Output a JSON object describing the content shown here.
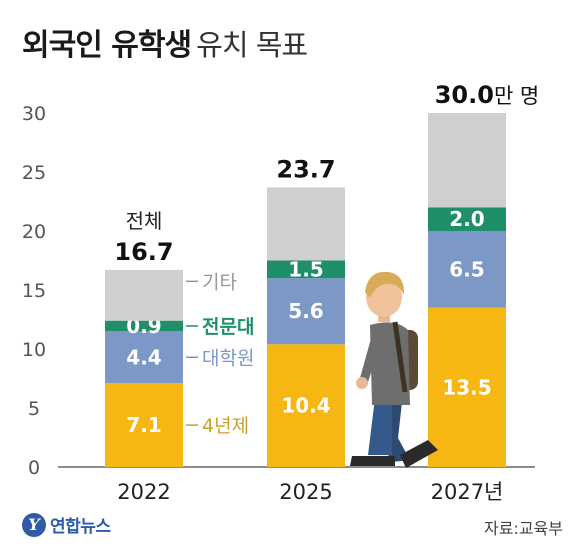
{
  "title": {
    "bold": "외국인 유학생",
    "light": "유치 목표"
  },
  "source": "자료:교육부",
  "logo": {
    "text": "연합뉴스",
    "mark": "Y"
  },
  "chart_data": {
    "type": "bar",
    "stacked": true,
    "categories": [
      "2022",
      "2025",
      "2027년"
    ],
    "ylim": [
      0,
      30
    ],
    "yticks": [
      "0",
      "5",
      "10",
      "15",
      "20",
      "25",
      "30"
    ],
    "grid": false,
    "series": [
      {
        "name": "4년제",
        "values": [
          7.1,
          10.4,
          13.5
        ],
        "labels": [
          "7.1",
          "10.4",
          "13.5"
        ],
        "color": "#f7b713"
      },
      {
        "name": "대학원",
        "values": [
          4.4,
          5.6,
          6.5
        ],
        "labels": [
          "4.4",
          "5.6",
          "6.5"
        ],
        "color": "#7b98c7"
      },
      {
        "name": "전문대",
        "values": [
          0.9,
          1.5,
          2.0
        ],
        "labels": [
          "0.9",
          "1.5",
          "2.0"
        ],
        "color": "#1f8f6a"
      },
      {
        "name": "기타",
        "values": [
          4.3,
          6.2,
          8.0
        ],
        "color": "#cfcfcf"
      }
    ],
    "totals": [
      {
        "value": "16.7",
        "prefix": "전체",
        "suffix": ""
      },
      {
        "value": "23.7",
        "prefix": "",
        "suffix": ""
      },
      {
        "value": "30.0",
        "prefix": "",
        "suffix": "만 명"
      }
    ],
    "legend_colors": {
      "4년제": "#c9a227",
      "대학원": "#7b98c7",
      "전문대": "#1f8f6a",
      "기타": "#9a9a9a"
    }
  }
}
